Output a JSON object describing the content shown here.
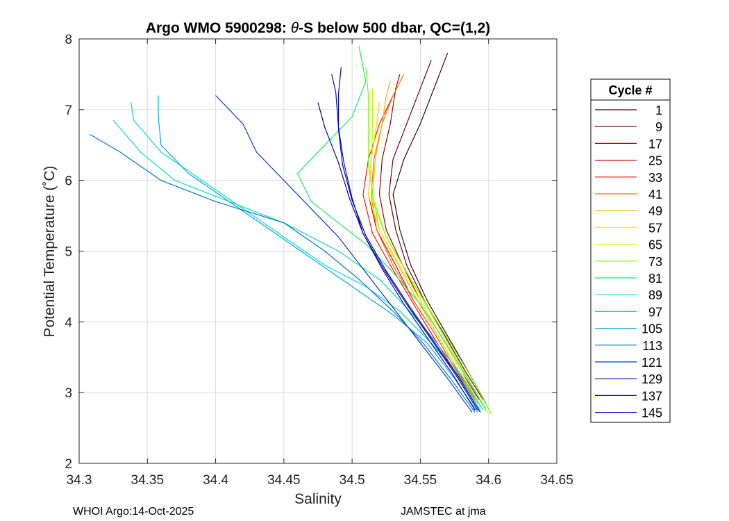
{
  "chart_data": {
    "type": "line",
    "title_prefix": "Argo WMO 5900298: ",
    "title_theta": "θ",
    "title_suffix": "-S below 500 dbar,  QC=(1,2)",
    "xlabel": "Salinity",
    "ylabel": "Potential Temperature (˚C)",
    "xlim": [
      34.3,
      34.65
    ],
    "ylim": [
      2,
      8
    ],
    "xticks": [
      "34.3",
      "34.35",
      "34.4",
      "34.45",
      "34.5",
      "34.55",
      "34.6",
      "34.65"
    ],
    "yticks": [
      "2",
      "3",
      "4",
      "5",
      "6",
      "7",
      "8"
    ],
    "grid": true,
    "legend": {
      "title": "Cycle #",
      "placement": "right-outside",
      "entries": [
        {
          "label": "1",
          "color": "#3b0000"
        },
        {
          "label": "9",
          "color": "#6e0000"
        },
        {
          "label": "17",
          "color": "#a00000"
        },
        {
          "label": "25",
          "color": "#d40000"
        },
        {
          "label": "33",
          "color": "#ff1200"
        },
        {
          "label": "41",
          "color": "#ff6a00"
        },
        {
          "label": "49",
          "color": "#ffb000"
        },
        {
          "label": "57",
          "color": "#fff200"
        },
        {
          "label": "65",
          "color": "#c6ff00"
        },
        {
          "label": "73",
          "color": "#6fff00"
        },
        {
          "label": "81",
          "color": "#10f060"
        },
        {
          "label": "89",
          "color": "#00e0b0"
        },
        {
          "label": "97",
          "color": "#00d8e0"
        },
        {
          "label": "105",
          "color": "#00a8e0"
        },
        {
          "label": "113",
          "color": "#0072d8"
        },
        {
          "label": "121",
          "color": "#003cc8"
        },
        {
          "label": "129",
          "color": "#0010b0"
        },
        {
          "label": "137",
          "color": "#000090"
        },
        {
          "label": "145",
          "color": "#0000c8"
        }
      ]
    },
    "series": [
      {
        "name": "cycle 1",
        "color": "#3b0000",
        "points": [
          [
            34.598,
            2.85
          ],
          [
            34.585,
            3.3
          ],
          [
            34.57,
            3.8
          ],
          [
            34.555,
            4.3
          ],
          [
            34.543,
            4.8
          ],
          [
            34.535,
            5.3
          ],
          [
            34.53,
            5.8
          ],
          [
            34.538,
            6.3
          ],
          [
            34.55,
            6.8
          ],
          [
            34.56,
            7.3
          ],
          [
            34.57,
            7.8
          ]
        ]
      },
      {
        "name": "cycle 9",
        "color": "#6e0000",
        "points": [
          [
            34.596,
            2.9
          ],
          [
            34.583,
            3.3
          ],
          [
            34.568,
            3.8
          ],
          [
            34.553,
            4.3
          ],
          [
            34.54,
            4.8
          ],
          [
            34.532,
            5.3
          ],
          [
            34.527,
            5.8
          ],
          [
            34.53,
            6.3
          ],
          [
            34.54,
            6.8
          ],
          [
            34.55,
            7.3
          ],
          [
            34.558,
            7.7
          ]
        ]
      },
      {
        "name": "cycle 17",
        "color": "#a00000",
        "points": [
          [
            34.593,
            2.9
          ],
          [
            34.58,
            3.3
          ],
          [
            34.565,
            3.8
          ],
          [
            34.55,
            4.3
          ],
          [
            34.537,
            4.8
          ],
          [
            34.525,
            5.3
          ],
          [
            34.52,
            5.8
          ],
          [
            34.522,
            6.3
          ],
          [
            34.528,
            6.8
          ],
          [
            34.532,
            7.3
          ],
          [
            34.535,
            7.5
          ]
        ]
      },
      {
        "name": "cycle 25",
        "color": "#d40000",
        "points": [
          [
            34.59,
            2.95
          ],
          [
            34.575,
            3.35
          ],
          [
            34.56,
            3.85
          ],
          [
            34.545,
            4.3
          ],
          [
            34.532,
            4.8
          ],
          [
            34.518,
            5.3
          ],
          [
            34.512,
            5.8
          ],
          [
            34.514,
            6.3
          ],
          [
            34.518,
            6.8
          ],
          [
            34.52,
            7.1
          ]
        ]
      },
      {
        "name": "cycle 33",
        "color": "#ff1200",
        "points": [
          [
            34.588,
            2.95
          ],
          [
            34.572,
            3.4
          ],
          [
            34.556,
            3.9
          ],
          [
            34.542,
            4.35
          ],
          [
            34.528,
            4.8
          ],
          [
            34.515,
            5.25
          ],
          [
            34.508,
            5.8
          ],
          [
            34.512,
            6.3
          ],
          [
            34.52,
            6.8
          ],
          [
            34.53,
            7.2
          ]
        ]
      },
      {
        "name": "cycle 41",
        "color": "#ff6a00",
        "points": [
          [
            34.59,
            2.9
          ],
          [
            34.575,
            3.35
          ],
          [
            34.56,
            3.85
          ],
          [
            34.545,
            4.3
          ],
          [
            34.53,
            4.8
          ],
          [
            34.518,
            5.3
          ],
          [
            34.514,
            5.8
          ],
          [
            34.516,
            6.3
          ],
          [
            34.522,
            6.8
          ],
          [
            34.53,
            7.2
          ],
          [
            34.538,
            7.5
          ]
        ]
      },
      {
        "name": "cycle 49",
        "color": "#ffb000",
        "points": [
          [
            34.592,
            2.85
          ],
          [
            34.578,
            3.3
          ],
          [
            34.563,
            3.8
          ],
          [
            34.548,
            4.3
          ],
          [
            34.534,
            4.8
          ],
          [
            34.52,
            5.3
          ],
          [
            34.515,
            5.8
          ],
          [
            34.517,
            6.3
          ],
          [
            34.522,
            6.8
          ],
          [
            34.525,
            7.2
          ],
          [
            34.528,
            7.4
          ]
        ]
      },
      {
        "name": "cycle 57",
        "color": "#fff200",
        "points": [
          [
            34.594,
            2.8
          ],
          [
            34.58,
            3.3
          ],
          [
            34.565,
            3.8
          ],
          [
            34.55,
            4.3
          ],
          [
            34.535,
            4.8
          ],
          [
            34.52,
            5.3
          ],
          [
            34.512,
            5.8
          ],
          [
            34.514,
            6.3
          ],
          [
            34.518,
            6.8
          ],
          [
            34.52,
            7.1
          ]
        ]
      },
      {
        "name": "cycle 65",
        "color": "#c6ff00",
        "points": [
          [
            34.6,
            2.7
          ],
          [
            34.585,
            3.2
          ],
          [
            34.57,
            3.7
          ],
          [
            34.555,
            4.2
          ],
          [
            34.54,
            4.7
          ],
          [
            34.525,
            5.2
          ],
          [
            34.515,
            5.7
          ],
          [
            34.514,
            6.2
          ],
          [
            34.515,
            6.7
          ],
          [
            34.515,
            7.3
          ]
        ]
      },
      {
        "name": "cycle 73",
        "color": "#6fff00",
        "points": [
          [
            34.602,
            2.7
          ],
          [
            34.588,
            3.2
          ],
          [
            34.572,
            3.7
          ],
          [
            34.556,
            4.2
          ],
          [
            34.54,
            4.7
          ],
          [
            34.525,
            5.2
          ],
          [
            34.516,
            5.7
          ],
          [
            34.512,
            6.2
          ],
          [
            34.512,
            6.7
          ],
          [
            34.512,
            7.2
          ],
          [
            34.51,
            7.6
          ]
        ]
      },
      {
        "name": "cycle 81",
        "color": "#10f060",
        "points": [
          [
            34.598,
            2.75
          ],
          [
            34.583,
            3.25
          ],
          [
            34.567,
            3.75
          ],
          [
            34.55,
            4.25
          ],
          [
            34.53,
            4.7
          ],
          [
            34.51,
            5.1
          ],
          [
            34.49,
            5.4
          ],
          [
            34.47,
            5.7
          ],
          [
            34.46,
            6.1
          ],
          [
            34.48,
            6.5
          ],
          [
            34.5,
            6.9
          ],
          [
            34.51,
            7.4
          ],
          [
            34.505,
            7.9
          ]
        ]
      },
      {
        "name": "cycle 89",
        "color": "#00e0b0",
        "points": [
          [
            34.596,
            2.75
          ],
          [
            34.58,
            3.25
          ],
          [
            34.56,
            3.75
          ],
          [
            34.54,
            4.2
          ],
          [
            34.52,
            4.6
          ],
          [
            34.49,
            5.0
          ],
          [
            34.45,
            5.4
          ],
          [
            34.41,
            5.7
          ],
          [
            34.37,
            6.0
          ],
          [
            34.345,
            6.4
          ],
          [
            34.325,
            6.85
          ]
        ]
      },
      {
        "name": "cycle 97",
        "color": "#00d8e0",
        "points": [
          [
            34.594,
            2.75
          ],
          [
            34.578,
            3.25
          ],
          [
            34.558,
            3.7
          ],
          [
            34.535,
            4.15
          ],
          [
            34.51,
            4.5
          ],
          [
            34.48,
            4.8
          ],
          [
            34.45,
            5.2
          ],
          [
            34.42,
            5.6
          ],
          [
            34.39,
            6.0
          ],
          [
            34.36,
            6.4
          ],
          [
            34.34,
            6.85
          ],
          [
            34.338,
            7.1
          ]
        ]
      },
      {
        "name": "cycle 105",
        "color": "#00a8e0",
        "points": [
          [
            34.592,
            2.72
          ],
          [
            34.575,
            3.2
          ],
          [
            34.555,
            3.7
          ],
          [
            34.53,
            4.1
          ],
          [
            34.5,
            4.5
          ],
          [
            34.47,
            4.9
          ],
          [
            34.44,
            5.3
          ],
          [
            34.41,
            5.7
          ],
          [
            34.38,
            6.1
          ],
          [
            34.36,
            6.5
          ],
          [
            34.358,
            6.9
          ],
          [
            34.358,
            7.2
          ]
        ]
      },
      {
        "name": "cycle 113",
        "color": "#0072d8",
        "points": [
          [
            34.59,
            2.72
          ],
          [
            34.572,
            3.2
          ],
          [
            34.552,
            3.7
          ],
          [
            34.53,
            4.15
          ],
          [
            34.505,
            4.6
          ],
          [
            34.48,
            5.0
          ],
          [
            34.45,
            5.4
          ],
          [
            34.4,
            5.7
          ],
          [
            34.36,
            6.0
          ],
          [
            34.33,
            6.4
          ],
          [
            34.308,
            6.65
          ]
        ]
      },
      {
        "name": "cycle 121",
        "color": "#003cc8",
        "points": [
          [
            34.588,
            2.72
          ],
          [
            34.57,
            3.2
          ],
          [
            34.55,
            3.7
          ],
          [
            34.53,
            4.2
          ],
          [
            34.51,
            4.7
          ],
          [
            34.49,
            5.2
          ],
          [
            34.47,
            5.6
          ],
          [
            34.45,
            6.0
          ],
          [
            34.43,
            6.4
          ],
          [
            34.42,
            6.8
          ],
          [
            34.4,
            7.2
          ]
        ]
      },
      {
        "name": "cycle 129",
        "color": "#0010b0",
        "points": [
          [
            34.59,
            2.75
          ],
          [
            34.574,
            3.25
          ],
          [
            34.556,
            3.75
          ],
          [
            34.538,
            4.25
          ],
          [
            34.522,
            4.75
          ],
          [
            34.508,
            5.25
          ],
          [
            34.5,
            5.75
          ],
          [
            34.494,
            6.25
          ],
          [
            34.49,
            6.75
          ],
          [
            34.488,
            7.25
          ],
          [
            34.485,
            7.5
          ]
        ]
      },
      {
        "name": "cycle 137",
        "color": "#000090",
        "points": [
          [
            34.592,
            2.75
          ],
          [
            34.576,
            3.25
          ],
          [
            34.558,
            3.75
          ],
          [
            34.54,
            4.25
          ],
          [
            34.523,
            4.75
          ],
          [
            34.508,
            5.25
          ],
          [
            34.498,
            5.75
          ],
          [
            34.49,
            6.25
          ],
          [
            34.48,
            6.75
          ],
          [
            34.475,
            7.1
          ]
        ]
      },
      {
        "name": "cycle 145",
        "color": "#0000c8",
        "points": [
          [
            34.594,
            2.72
          ],
          [
            34.578,
            3.22
          ],
          [
            34.56,
            3.72
          ],
          [
            34.542,
            4.22
          ],
          [
            34.525,
            4.72
          ],
          [
            34.51,
            5.22
          ],
          [
            34.5,
            5.72
          ],
          [
            34.493,
            6.22
          ],
          [
            34.49,
            6.72
          ],
          [
            34.49,
            7.22
          ],
          [
            34.492,
            7.6
          ]
        ]
      }
    ]
  },
  "footer": {
    "left": "WHOI Argo:14-Oct-2025",
    "right": "JAMSTEC at jma"
  }
}
